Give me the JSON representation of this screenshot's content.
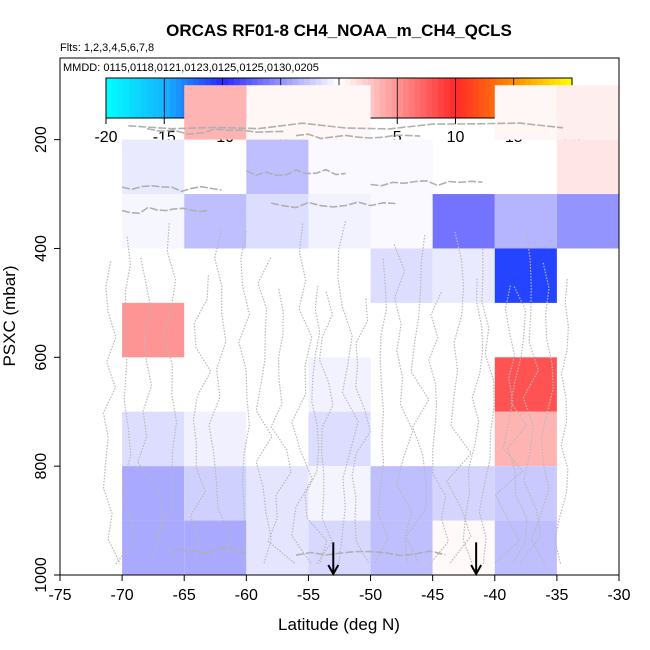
{
  "chart_data": {
    "type": "heatmap",
    "title": "ORCAS RF01-8 CH4_NOAA_m_CH4_QCLS",
    "flights_label": "Flts: 1,2,3,4,5,6,7,8",
    "dates_label": "MMDD: 0115,0118,0121,0123,0125,0125,0130,0205",
    "xlabel": "Latitude (deg N)",
    "ylabel": "PSXC (mbar)",
    "xlim": [
      -75,
      -30
    ],
    "ylim": [
      1000,
      50
    ],
    "x_ticks": [
      "-75",
      "-70",
      "-65",
      "-60",
      "-55",
      "-50",
      "-45",
      "-40",
      "-35",
      "-30"
    ],
    "y_ticks": [
      "200",
      "400",
      "600",
      "800",
      "1000"
    ],
    "colorbar": {
      "range": [
        -20,
        20
      ],
      "ticks": [
        "-20",
        "-15",
        "-10",
        "-5",
        "0",
        "5",
        "10",
        "15",
        "20"
      ]
    },
    "cells": [
      {
        "lat": [
          -65,
          -60
        ],
        "p": [
          100,
          200
        ],
        "value": 3.5
      },
      {
        "lat": [
          -60,
          -50
        ],
        "p": [
          100,
          200
        ],
        "value": 0.4
      },
      {
        "lat": [
          -40,
          -35
        ],
        "p": [
          100,
          200
        ],
        "value": 0.4
      },
      {
        "lat": [
          -35,
          -30
        ],
        "p": [
          100,
          200
        ],
        "value": 0.8
      },
      {
        "lat": [
          -70,
          -65
        ],
        "p": [
          200,
          300
        ],
        "value": -1.0
      },
      {
        "lat": [
          -60,
          -55
        ],
        "p": [
          200,
          300
        ],
        "value": -3.0
      },
      {
        "lat": [
          -55,
          -45
        ],
        "p": [
          200,
          300
        ],
        "value": -0.3
      },
      {
        "lat": [
          -35,
          -30
        ],
        "p": [
          200,
          300
        ],
        "value": 1.2
      },
      {
        "lat": [
          -70,
          -65
        ],
        "p": [
          300,
          400
        ],
        "value": -0.4
      },
      {
        "lat": [
          -65,
          -60
        ],
        "p": [
          300,
          400
        ],
        "value": -3.0
      },
      {
        "lat": [
          -60,
          -55
        ],
        "p": [
          300,
          400
        ],
        "value": -1.6
      },
      {
        "lat": [
          -55,
          -50
        ],
        "p": [
          300,
          400
        ],
        "value": -0.6
      },
      {
        "lat": [
          -50,
          -45
        ],
        "p": [
          300,
          400
        ],
        "value": -0.3
      },
      {
        "lat": [
          -45,
          -40
        ],
        "p": [
          300,
          400
        ],
        "value": -6.5
      },
      {
        "lat": [
          -40,
          -35
        ],
        "p": [
          300,
          400
        ],
        "value": -3.5
      },
      {
        "lat": [
          -35,
          -30
        ],
        "p": [
          300,
          400
        ],
        "value": -5.0
      },
      {
        "lat": [
          -50,
          -45
        ],
        "p": [
          400,
          500
        ],
        "value": -1.6
      },
      {
        "lat": [
          -45,
          -40
        ],
        "p": [
          400,
          500
        ],
        "value": -1.0
      },
      {
        "lat": [
          -40,
          -35
        ],
        "p": [
          400,
          500
        ],
        "value": -11.0
      },
      {
        "lat": [
          -70,
          -65
        ],
        "p": [
          500,
          600
        ],
        "value": 5.0
      },
      {
        "lat": [
          -55,
          -50
        ],
        "p": [
          600,
          700
        ],
        "value": -0.6
      },
      {
        "lat": [
          -40,
          -35
        ],
        "p": [
          600,
          700
        ],
        "value": 8.0
      },
      {
        "lat": [
          -70,
          -65
        ],
        "p": [
          700,
          800
        ],
        "value": -1.6
      },
      {
        "lat": [
          -65,
          -60
        ],
        "p": [
          700,
          800
        ],
        "value": -0.7
      },
      {
        "lat": [
          -55,
          -50
        ],
        "p": [
          700,
          800
        ],
        "value": -1.6
      },
      {
        "lat": [
          -40,
          -35
        ],
        "p": [
          700,
          800
        ],
        "value": 3.5
      },
      {
        "lat": [
          -70,
          -65
        ],
        "p": [
          800,
          900
        ],
        "value": -4.0
      },
      {
        "lat": [
          -65,
          -60
        ],
        "p": [
          800,
          900
        ],
        "value": -2.2
      },
      {
        "lat": [
          -60,
          -55
        ],
        "p": [
          800,
          900
        ],
        "value": -1.2
      },
      {
        "lat": [
          -55,
          -50
        ],
        "p": [
          800,
          900
        ],
        "value": -0.5
      },
      {
        "lat": [
          -50,
          -45
        ],
        "p": [
          800,
          900
        ],
        "value": -3.0
      },
      {
        "lat": [
          -45,
          -40
        ],
        "p": [
          800,
          900
        ],
        "value": -2.0
      },
      {
        "lat": [
          -40,
          -35
        ],
        "p": [
          800,
          900
        ],
        "value": -2.5
      },
      {
        "lat": [
          -70,
          -65
        ],
        "p": [
          900,
          1000
        ],
        "value": -4.0
      },
      {
        "lat": [
          -65,
          -60
        ],
        "p": [
          900,
          1000
        ],
        "value": -4.0
      },
      {
        "lat": [
          -60,
          -55
        ],
        "p": [
          900,
          1000
        ],
        "value": -1.2
      },
      {
        "lat": [
          -55,
          -50
        ],
        "p": [
          900,
          1000
        ],
        "value": -1.8
      },
      {
        "lat": [
          -50,
          -45
        ],
        "p": [
          900,
          1000
        ],
        "value": -3.0
      },
      {
        "lat": [
          -45,
          -40
        ],
        "p": [
          900,
          1000
        ],
        "value": 0.3
      },
      {
        "lat": [
          -40,
          -35
        ],
        "p": [
          900,
          1000
        ],
        "value": -3.0
      }
    ],
    "arrows": [
      {
        "lat": -53,
        "p_top": 940,
        "p_bottom": 1000
      },
      {
        "lat": -41.5,
        "p_top": 940,
        "p_bottom": 1000
      }
    ]
  }
}
